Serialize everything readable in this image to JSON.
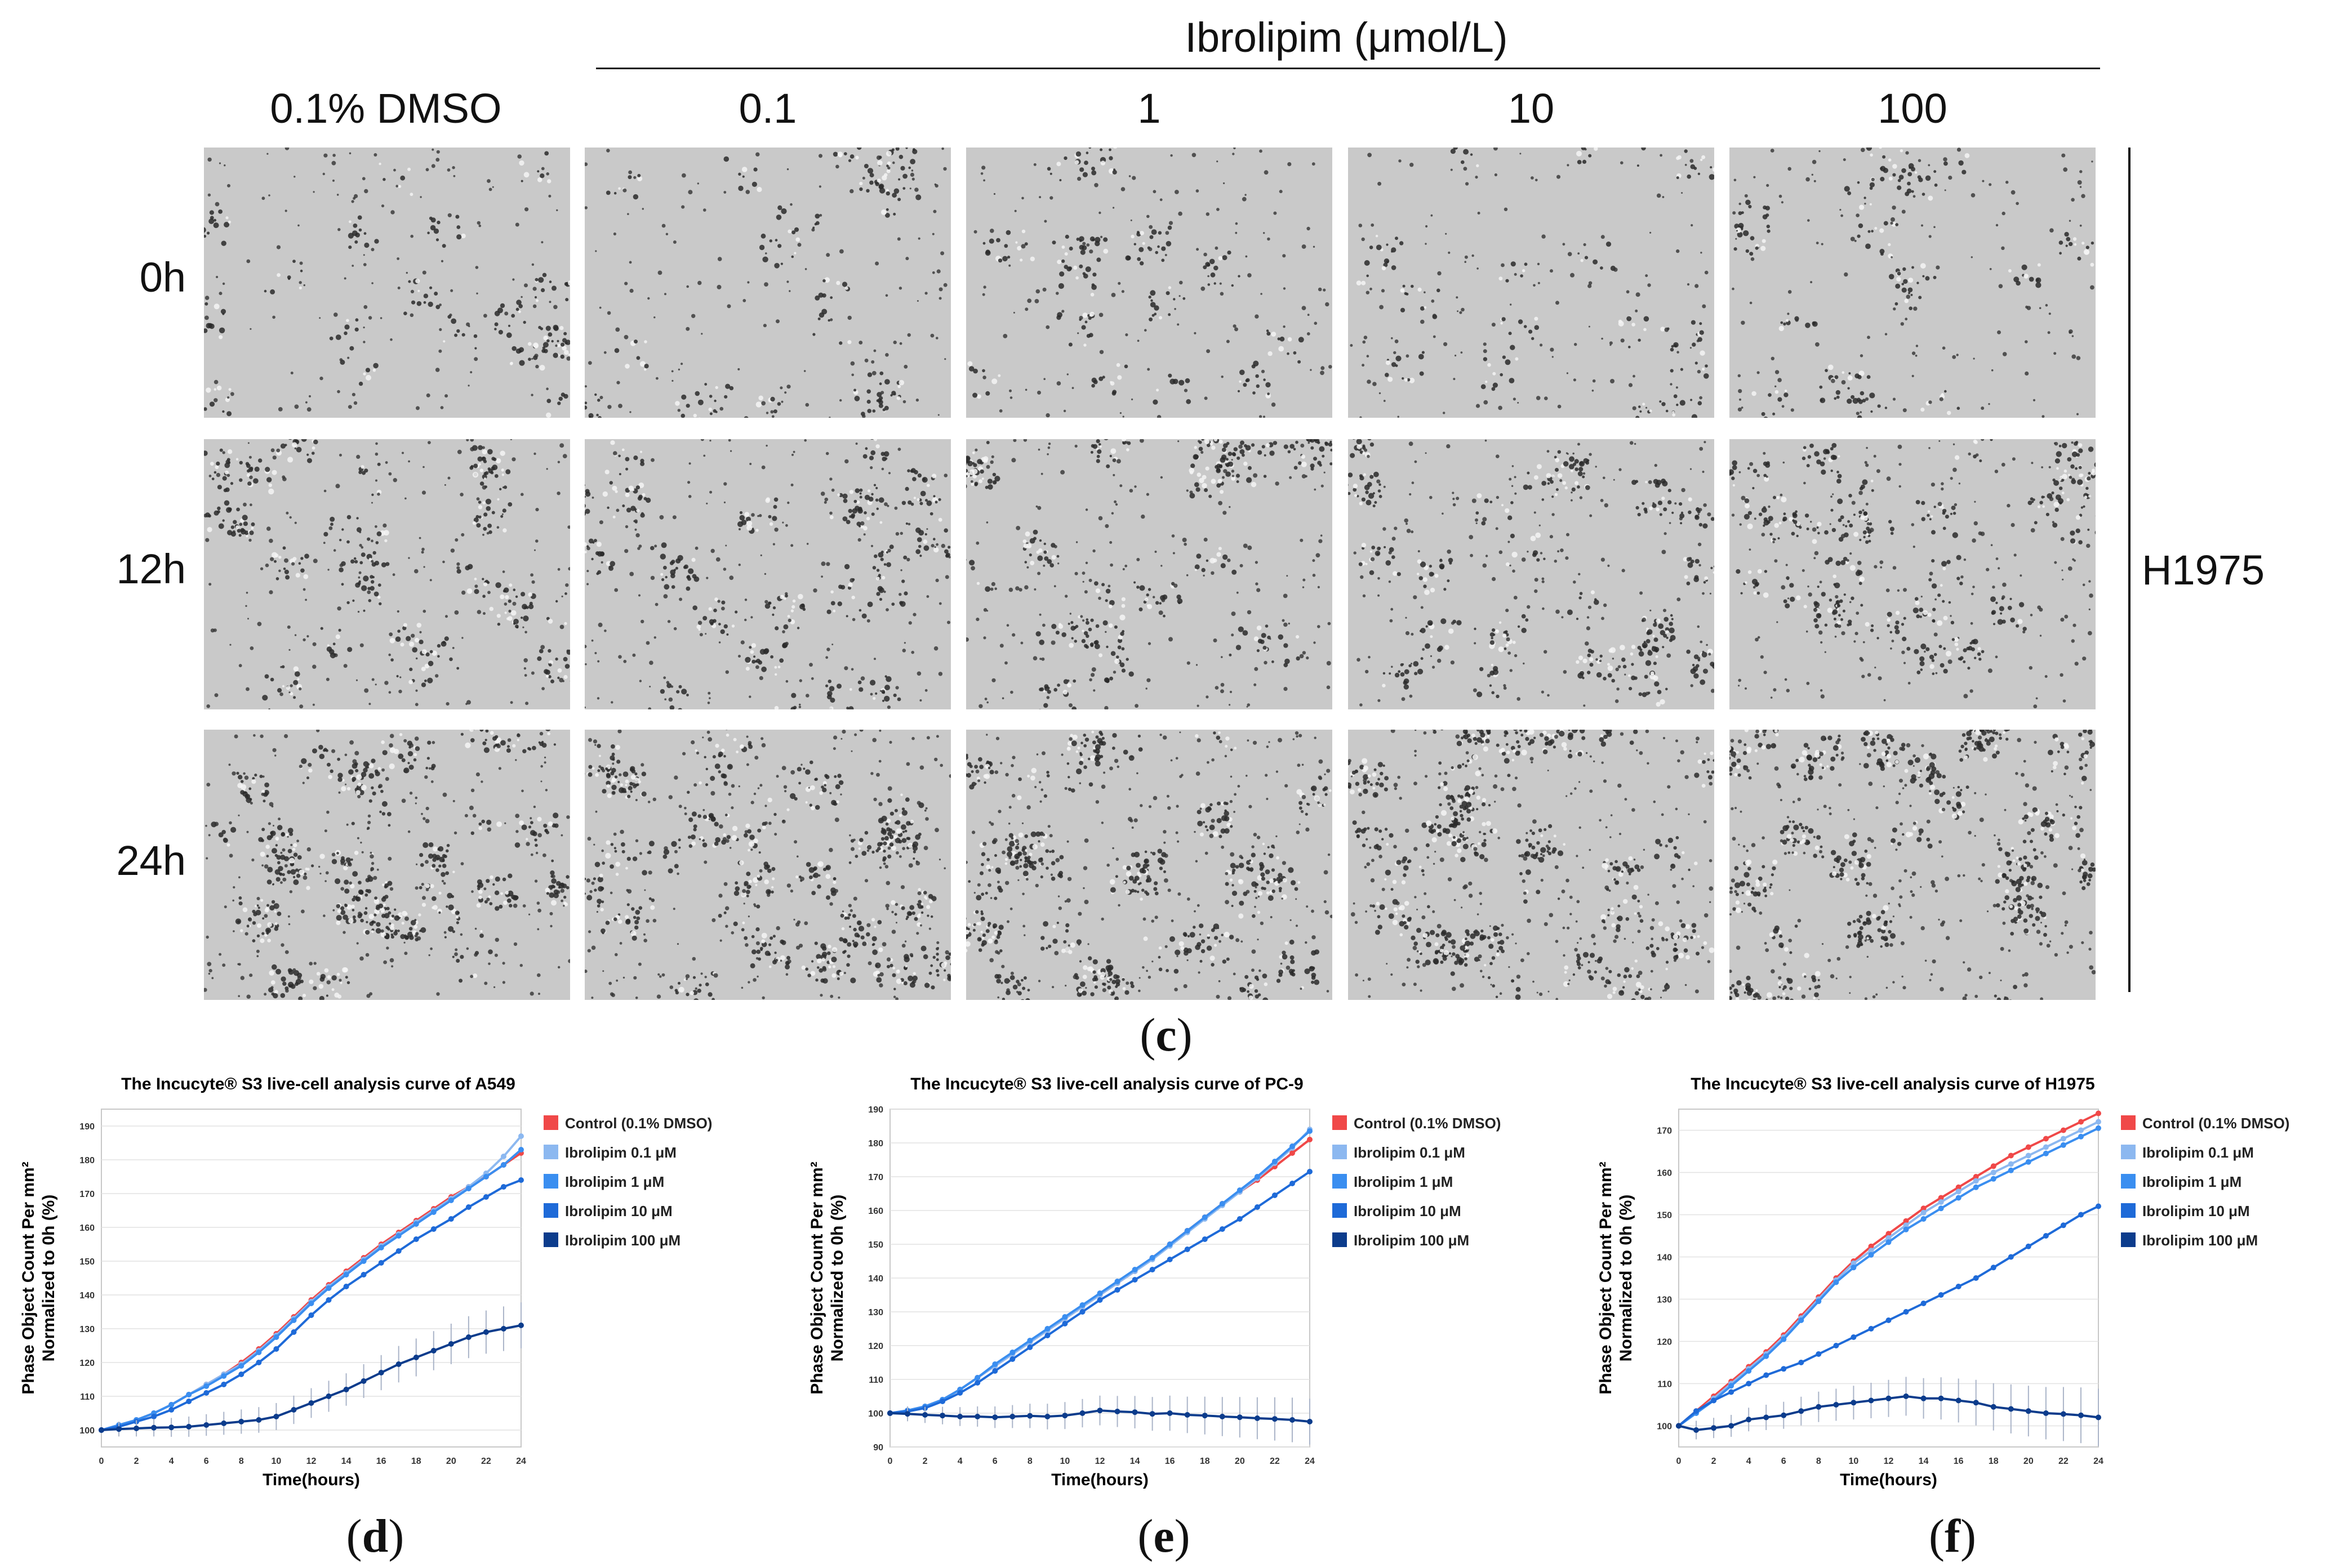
{
  "figure": {
    "treatment_title": "Ibrolipim (μmol/L)",
    "columns": [
      "0.1% DMSO",
      "0.1",
      "1",
      "10",
      "100"
    ],
    "rows": [
      "0h",
      "12h",
      "24h"
    ],
    "cell_line": "H1975",
    "micrograph_description": "phase-contrast cell image",
    "panel_c": {
      "pre": "(",
      "letter": "c",
      "post": ")"
    },
    "panel_d": {
      "pre": "(",
      "letter": "d",
      "post": ")"
    },
    "panel_e": {
      "pre": "(",
      "letter": "e",
      "post": ")"
    },
    "panel_f": {
      "pre": "(",
      "letter": "f",
      "post": ")"
    }
  },
  "colors": {
    "control": "#f04848",
    "ib01": "#8cb8f0",
    "ib1": "#3a8ef0",
    "ib10": "#1e6ad8",
    "ib100": "#0c3c8c",
    "grid": "#e2e2e2",
    "frame": "#c8c8c8"
  },
  "chart_data": [
    {
      "type": "line",
      "title": "The Incucyte® S3 live-cell analysis curve of A549",
      "xlabel": "Time(hours)",
      "ylabel": [
        "Phase Object Count Per mm²",
        "Normalized to 0h (%)"
      ],
      "xlim": [
        0,
        24
      ],
      "ylim": [
        95,
        195
      ],
      "xticks": [
        0,
        2,
        4,
        6,
        8,
        10,
        12,
        14,
        16,
        18,
        20,
        22,
        24
      ],
      "yticks": [
        100,
        110,
        120,
        130,
        140,
        150,
        160,
        170,
        180,
        190
      ],
      "x": [
        0,
        1,
        2,
        3,
        4,
        5,
        6,
        7,
        8,
        9,
        10,
        11,
        12,
        13,
        14,
        15,
        16,
        17,
        18,
        19,
        20,
        21,
        22,
        23,
        24
      ],
      "series": [
        {
          "name": "Control (0.1% DMSO)",
          "color_key": "control",
          "values": [
            100,
            101.5,
            103,
            105,
            107.5,
            110.5,
            113.5,
            116.5,
            120,
            124,
            128.5,
            133.5,
            138.5,
            143,
            147,
            151,
            155,
            158.5,
            162,
            165.5,
            169,
            172,
            175,
            178.5,
            182
          ]
        },
        {
          "name": "Ibrolipim 0.1 μM",
          "color_key": "ib01",
          "values": [
            100,
            101.5,
            103,
            105,
            107.5,
            110.5,
            113.5,
            116.5,
            119.5,
            123.5,
            128,
            133,
            138,
            142.5,
            146.5,
            150.5,
            154.5,
            158,
            161.5,
            165,
            168.5,
            172,
            176,
            181,
            187
          ]
        },
        {
          "name": "Ibrolipim 1 μM",
          "color_key": "ib1",
          "values": [
            100,
            101.5,
            103,
            105,
            107.5,
            110.5,
            113,
            116,
            119,
            123,
            127.5,
            132.5,
            137.5,
            142,
            146,
            150,
            154,
            157.5,
            161,
            164.5,
            168,
            171.5,
            175,
            178.5,
            183
          ]
        },
        {
          "name": "Ibrolipim 10 μM",
          "color_key": "ib10",
          "values": [
            100,
            101,
            102.5,
            104,
            106,
            108.5,
            111,
            113.5,
            116.5,
            120,
            124,
            129,
            134,
            138.5,
            142.5,
            146,
            149.5,
            153,
            156.5,
            159.5,
            162.5,
            166,
            169,
            172,
            174
          ]
        },
        {
          "name": "Ibrolipim 100 μM",
          "color_key": "ib100",
          "values": [
            100,
            100.3,
            100.5,
            100.7,
            100.8,
            101,
            101.5,
            102,
            102.5,
            103,
            104,
            106,
            108,
            110,
            112,
            114.5,
            117,
            119.5,
            121.5,
            123.5,
            125.5,
            127.5,
            129,
            130,
            131
          ]
        }
      ]
    },
    {
      "type": "line",
      "title": "The Incucyte® S3 live-cell analysis curve of PC-9",
      "xlabel": "Time(hours)",
      "ylabel": [
        "Phase Object Count Per mm²",
        "Normalized to 0h (%)"
      ],
      "xlim": [
        0,
        24
      ],
      "ylim": [
        90,
        190
      ],
      "xticks": [
        0,
        2,
        4,
        6,
        8,
        10,
        12,
        14,
        16,
        18,
        20,
        22,
        24
      ],
      "yticks": [
        90,
        100,
        110,
        120,
        130,
        140,
        150,
        160,
        170,
        180,
        190
      ],
      "x": [
        0,
        1,
        2,
        3,
        4,
        5,
        6,
        7,
        8,
        9,
        10,
        11,
        12,
        13,
        14,
        15,
        16,
        17,
        18,
        19,
        20,
        21,
        22,
        23,
        24
      ],
      "series": [
        {
          "name": "Control (0.1% DMSO)",
          "color_key": "control",
          "values": [
            100,
            100.8,
            102,
            104,
            107,
            110.5,
            114,
            117.5,
            121,
            124.5,
            128,
            131.5,
            135,
            138.5,
            142,
            146,
            150,
            154,
            158,
            162,
            165.5,
            169,
            173,
            177,
            181
          ]
        },
        {
          "name": "Ibrolipim 0.1 μM",
          "color_key": "ib01",
          "values": [
            100,
            100.8,
            102,
            104,
            107,
            110.5,
            114,
            117.5,
            121,
            124.5,
            128,
            131.5,
            135,
            138.5,
            142,
            145.5,
            149.5,
            153.5,
            157.5,
            161.5,
            165.5,
            169.5,
            174,
            178.5,
            184
          ]
        },
        {
          "name": "Ibrolipim 1 μM",
          "color_key": "ib1",
          "values": [
            100,
            100.8,
            102,
            104,
            107,
            110.5,
            114.5,
            118,
            121.5,
            125,
            128.5,
            132,
            135.5,
            139,
            142.5,
            146,
            150,
            154,
            158,
            162,
            166,
            170,
            174.5,
            179,
            183.5
          ]
        },
        {
          "name": "Ibrolipim 10 μM",
          "color_key": "ib10",
          "values": [
            100,
            100.5,
            101.5,
            103.5,
            106,
            109,
            112.5,
            116,
            119.5,
            123,
            126.5,
            130,
            133.5,
            136.5,
            139.5,
            142.5,
            145.5,
            148.5,
            151.5,
            154.5,
            157.5,
            161,
            164.5,
            168,
            171.5
          ]
        },
        {
          "name": "Ibrolipim 100 μM",
          "color_key": "ib100",
          "values": [
            100,
            99.8,
            99.5,
            99.3,
            99,
            99,
            98.8,
            99,
            99.2,
            99,
            99.3,
            100,
            100.8,
            100.5,
            100.3,
            99.8,
            100,
            99.5,
            99.3,
            99,
            98.8,
            98.5,
            98.3,
            98,
            97.5
          ]
        }
      ]
    },
    {
      "type": "line",
      "title": "The Incucyte® S3 live-cell analysis curve of H1975",
      "xlabel": "Time(hours)",
      "ylabel": [
        "Phase Object Count Per mm²",
        "Normalized to 0h (%)"
      ],
      "xlim": [
        0,
        24
      ],
      "ylim": [
        95,
        175
      ],
      "xticks": [
        0,
        2,
        4,
        6,
        8,
        10,
        12,
        14,
        16,
        18,
        20,
        22,
        24
      ],
      "yticks": [
        100,
        110,
        120,
        130,
        140,
        150,
        160,
        170
      ],
      "x": [
        0,
        1,
        2,
        3,
        4,
        5,
        6,
        7,
        8,
        9,
        10,
        11,
        12,
        13,
        14,
        15,
        16,
        17,
        18,
        19,
        20,
        21,
        22,
        23,
        24
      ],
      "series": [
        {
          "name": "Control (0.1% DMSO)",
          "color_key": "control",
          "values": [
            100,
            103.5,
            107,
            110.5,
            114,
            117.5,
            121.5,
            126,
            130.5,
            135,
            139,
            142.5,
            145.5,
            148.5,
            151.5,
            154,
            156.5,
            159,
            161.5,
            164,
            166,
            168,
            170,
            172,
            174
          ]
        },
        {
          "name": "Ibrolipim 0.1 μM",
          "color_key": "ib01",
          "values": [
            100,
            103,
            106.5,
            110,
            113.5,
            117,
            121,
            125.5,
            130,
            134.5,
            138.5,
            141.5,
            144.5,
            147.5,
            150.5,
            153,
            155.5,
            158,
            160,
            162,
            164,
            166,
            168,
            170,
            172
          ]
        },
        {
          "name": "Ibrolipim 1 μM",
          "color_key": "ib1",
          "values": [
            100,
            103,
            106,
            109.5,
            113,
            116.5,
            120.5,
            125,
            129.5,
            134,
            137.5,
            140.5,
            143.5,
            146.5,
            149,
            151.5,
            154,
            156.5,
            158.5,
            160.5,
            162.5,
            164.5,
            166.5,
            168.5,
            170.5
          ]
        },
        {
          "name": "Ibrolipim 10 μM",
          "color_key": "ib10",
          "values": [
            100,
            103.5,
            106,
            108,
            110,
            112,
            113.5,
            115,
            117,
            119,
            121,
            123,
            125,
            127,
            129,
            131,
            133,
            135,
            137.5,
            140,
            142.5,
            145,
            147.5,
            150,
            152
          ]
        },
        {
          "name": "Ibrolipim 100 μM",
          "color_key": "ib100",
          "values": [
            100,
            99,
            99.5,
            100,
            101.5,
            102,
            102.5,
            103.5,
            104.5,
            105,
            105.5,
            106,
            106.5,
            107,
            106.5,
            106.5,
            106,
            105.5,
            104.5,
            104,
            103.5,
            103,
            102.8,
            102.5,
            102
          ]
        }
      ]
    }
  ]
}
